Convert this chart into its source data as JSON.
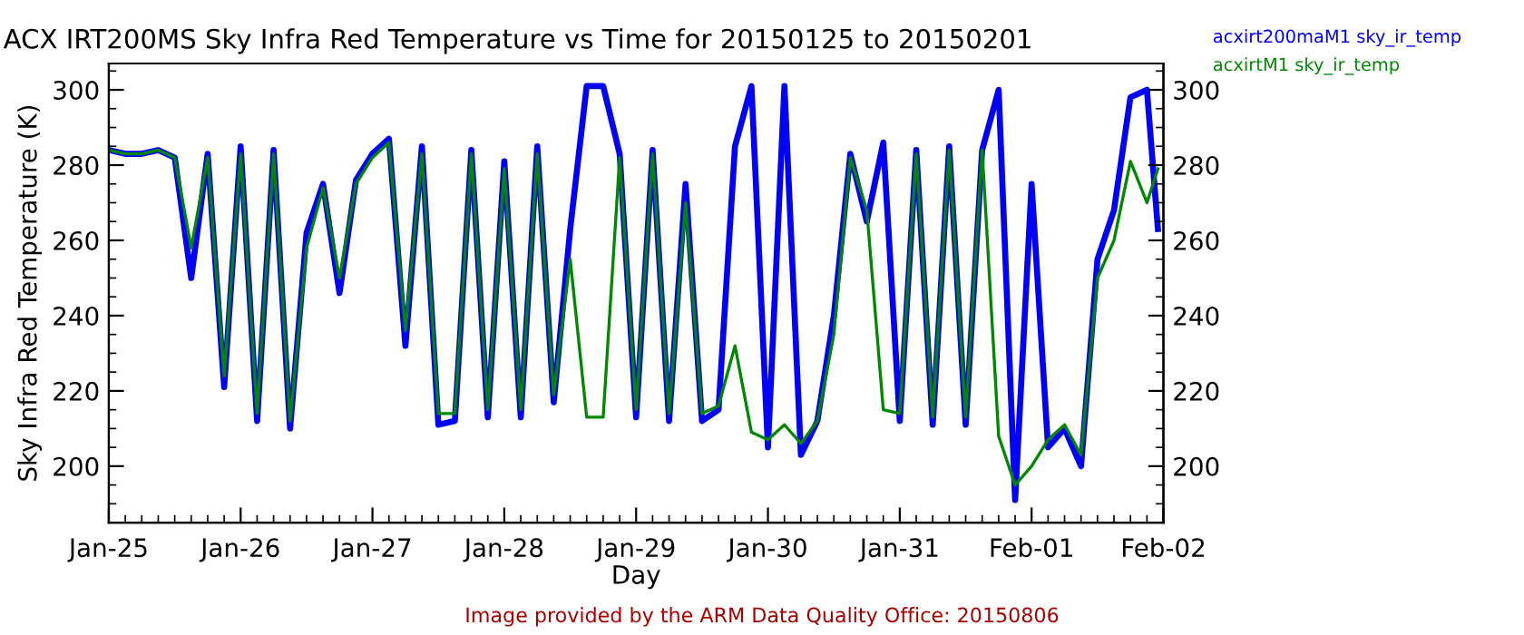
{
  "chart_data": {
    "type": "line",
    "title": "ACX IRT200MS Sky Infra Red Temperature vs Time for 20150125 to 20150201",
    "xlabel": "Day",
    "ylabel": "Sky Infra Red Temperature (K)",
    "x": [
      "2015-01-25T00:00",
      "2015-01-25T03:00",
      "2015-01-25T06:00",
      "2015-01-25T09:00",
      "2015-01-25T12:00",
      "2015-01-25T15:00",
      "2015-01-25T18:00",
      "2015-01-25T21:00",
      "2015-01-26T00:00",
      "2015-01-26T03:00",
      "2015-01-26T06:00",
      "2015-01-26T09:00",
      "2015-01-26T12:00",
      "2015-01-26T15:00",
      "2015-01-26T18:00",
      "2015-01-26T21:00",
      "2015-01-27T00:00",
      "2015-01-27T03:00",
      "2015-01-27T06:00",
      "2015-01-27T09:00",
      "2015-01-27T12:00",
      "2015-01-27T15:00",
      "2015-01-27T18:00",
      "2015-01-27T21:00",
      "2015-01-28T00:00",
      "2015-01-28T03:00",
      "2015-01-28T06:00",
      "2015-01-28T09:00",
      "2015-01-28T12:00",
      "2015-01-28T15:00",
      "2015-01-28T18:00",
      "2015-01-28T21:00",
      "2015-01-29T00:00",
      "2015-01-29T03:00",
      "2015-01-29T06:00",
      "2015-01-29T09:00",
      "2015-01-29T12:00",
      "2015-01-29T15:00",
      "2015-01-29T18:00",
      "2015-01-29T21:00",
      "2015-01-30T00:00",
      "2015-01-30T03:00",
      "2015-01-30T06:00",
      "2015-01-30T09:00",
      "2015-01-30T12:00",
      "2015-01-30T15:00",
      "2015-01-30T18:00",
      "2015-01-30T21:00",
      "2015-01-31T00:00",
      "2015-01-31T03:00",
      "2015-01-31T06:00",
      "2015-01-31T09:00",
      "2015-01-31T12:00",
      "2015-01-31T15:00",
      "2015-01-31T18:00",
      "2015-01-31T21:00",
      "2015-02-01T00:00",
      "2015-02-01T03:00",
      "2015-02-01T06:00",
      "2015-02-01T09:00",
      "2015-02-01T12:00",
      "2015-02-01T15:00",
      "2015-02-01T18:00",
      "2015-02-01T21:00",
      "2015-02-01T23:00"
    ],
    "series": [
      {
        "name": "acxirt200maM1 sky_ir_temp",
        "color": "#0000ff",
        "values": [
          284,
          283,
          283,
          284,
          282,
          250,
          283,
          221,
          285,
          212,
          284,
          210,
          262,
          275,
          246,
          276,
          283,
          287,
          232,
          285,
          211,
          212,
          284,
          213,
          281,
          213,
          285,
          217,
          263,
          301,
          301,
          283,
          213,
          284,
          212,
          275,
          212,
          215,
          285,
          301,
          205,
          301,
          203,
          212,
          240,
          283,
          265,
          286,
          212,
          284,
          211,
          285,
          211,
          284,
          300,
          191,
          275,
          205,
          210,
          200,
          255,
          268,
          298,
          300,
          263
        ]
      },
      {
        "name": "acxirtM1 sky_ir_temp",
        "color": "#008800",
        "values": [
          284,
          283,
          283,
          284,
          282,
          258,
          282,
          224,
          283,
          214,
          283,
          212,
          258,
          274,
          250,
          275,
          282,
          286,
          236,
          283,
          214,
          214,
          283,
          215,
          279,
          215,
          283,
          219,
          255,
          213,
          213,
          282,
          215,
          283,
          214,
          270,
          214,
          216,
          232,
          209,
          207,
          211,
          206,
          212,
          235,
          282,
          268,
          215,
          214,
          283,
          213,
          284,
          213,
          284,
          208,
          195,
          200,
          207,
          211,
          203,
          250,
          260,
          281,
          270,
          279
        ]
      }
    ],
    "xlim": [
      "2015-01-25T00:00",
      "2015-02-02T00:00"
    ],
    "xticks": [
      {
        "value": "2015-01-25",
        "label": "Jan-25"
      },
      {
        "value": "2015-01-26",
        "label": "Jan-26"
      },
      {
        "value": "2015-01-27",
        "label": "Jan-27"
      },
      {
        "value": "2015-01-28",
        "label": "Jan-28"
      },
      {
        "value": "2015-01-29",
        "label": "Jan-29"
      },
      {
        "value": "2015-01-30",
        "label": "Jan-30"
      },
      {
        "value": "2015-01-31",
        "label": "Jan-31"
      },
      {
        "value": "2015-02-01",
        "label": "Feb-01"
      },
      {
        "value": "2015-02-02",
        "label": "Feb-02"
      }
    ],
    "ylim": [
      185,
      307
    ],
    "yticks": [
      200,
      220,
      240,
      260,
      280,
      300
    ],
    "y2lim": [
      185,
      307
    ],
    "y2ticks": [
      200,
      220,
      240,
      260,
      280,
      300
    ],
    "legend": "top right",
    "line_style": "solid",
    "marker": "none",
    "grid": false,
    "annotations": [
      "Image provided by the ARM Data Quality Office: 20150806"
    ]
  }
}
